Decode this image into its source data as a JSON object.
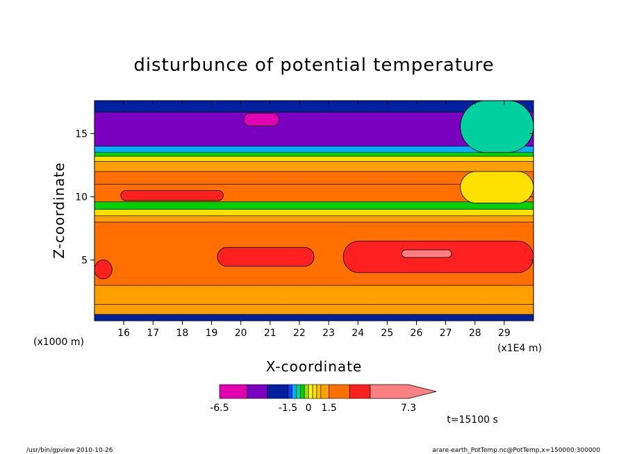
{
  "chart_data": {
    "type": "heatmap",
    "title": "disturbunce of potential temperature",
    "xlabel": "X-coordinate",
    "ylabel": "Z-coordinate",
    "x_unit_note": "(x1E4 m)",
    "y_unit_note": "(x1000 m)",
    "x_ticks": [
      "16",
      "17",
      "18",
      "19",
      "20",
      "21",
      "22",
      "23",
      "24",
      "25",
      "26",
      "27",
      "28",
      "29"
    ],
    "x_tick_values": [
      16,
      17,
      18,
      19,
      20,
      21,
      22,
      23,
      24,
      25,
      26,
      27,
      28,
      29
    ],
    "y_ticks": [
      "5",
      "10",
      "15"
    ],
    "y_tick_values": [
      5,
      10,
      15
    ],
    "xlim": [
      15.0,
      30.0
    ],
    "ylim": [
      0.2,
      17.6
    ],
    "grid": false,
    "time_label": "t=15100 s",
    "colorbar": {
      "labels": [
        "-6.5",
        "-1.5",
        "0",
        "1.5",
        "7.3"
      ],
      "levels": [
        -6.5,
        -4.5,
        -3.0,
        -1.5,
        -1.2,
        -0.9,
        -0.6,
        -0.3,
        0,
        0.3,
        0.6,
        0.9,
        1.5,
        3.0,
        4.5,
        7.3
      ],
      "colors": [
        "#e000b0",
        "#7a00c0",
        "#0020a0",
        "#0040ff",
        "#00b0ff",
        "#00d0a0",
        "#00d000",
        "#a0e000",
        "#ffff00",
        "#ffe000",
        "#ffc000",
        "#ffa000",
        "#ff7000",
        "#ff2020",
        "#ff8080"
      ]
    },
    "bands": [
      {
        "z": [
          0.2,
          0.7
        ],
        "level": -3.0
      },
      {
        "z": [
          0.7,
          1.5
        ],
        "level": 1.2
      },
      {
        "z": [
          1.5,
          3.0
        ],
        "level": 1.0
      },
      {
        "z": [
          3.0,
          8.0
        ],
        "level": 2.0
      },
      {
        "z": [
          8.0,
          8.5
        ],
        "level": 1.2
      },
      {
        "z": [
          8.5,
          9.0
        ],
        "level": 0.5
      },
      {
        "z": [
          9.0,
          9.6
        ],
        "level": -0.5
      },
      {
        "z": [
          9.6,
          11.0
        ],
        "level": 2.0
      },
      {
        "z": [
          11.0,
          12.0
        ],
        "level": 1.5
      },
      {
        "z": [
          12.0,
          12.8
        ],
        "level": 1.0
      },
      {
        "z": [
          12.8,
          13.2
        ],
        "level": 0.3
      },
      {
        "z": [
          13.2,
          13.5
        ],
        "level": -0.4
      },
      {
        "z": [
          13.5,
          14.0
        ],
        "level": -1.0
      },
      {
        "z": [
          14.0,
          16.7
        ],
        "level": -4.0
      },
      {
        "z": [
          16.7,
          17.6
        ],
        "level": -2.0
      }
    ],
    "features": [
      {
        "x": [
          15.9,
          19.4
        ],
        "z": [
          9.7,
          10.5
        ],
        "level": 3.5
      },
      {
        "x": [
          15.0,
          15.6
        ],
        "z": [
          3.5,
          5.0
        ],
        "level": 3.5
      },
      {
        "x": [
          19.2,
          22.5
        ],
        "z": [
          4.5,
          6.0
        ],
        "level": 3.5
      },
      {
        "x": [
          23.5,
          30.0
        ],
        "z": [
          4.0,
          6.5
        ],
        "level": 3.5
      },
      {
        "x": [
          25.5,
          27.2
        ],
        "z": [
          5.2,
          5.8
        ],
        "level": 6.0
      },
      {
        "x": [
          20.1,
          21.3
        ],
        "z": [
          15.6,
          16.6
        ],
        "level": -6.5
      },
      {
        "x": [
          27.5,
          30.0
        ],
        "z": [
          9.5,
          12.0
        ],
        "level": 0.5
      },
      {
        "x": [
          27.5,
          30.0
        ],
        "z": [
          13.5,
          17.6
        ],
        "level": -0.9
      }
    ],
    "footer_left": "/usr/bin/gpview   2010-10-26",
    "footer_right": "arare-earth_PotTemp.nc@PotTemp,x=150000:300000"
  }
}
